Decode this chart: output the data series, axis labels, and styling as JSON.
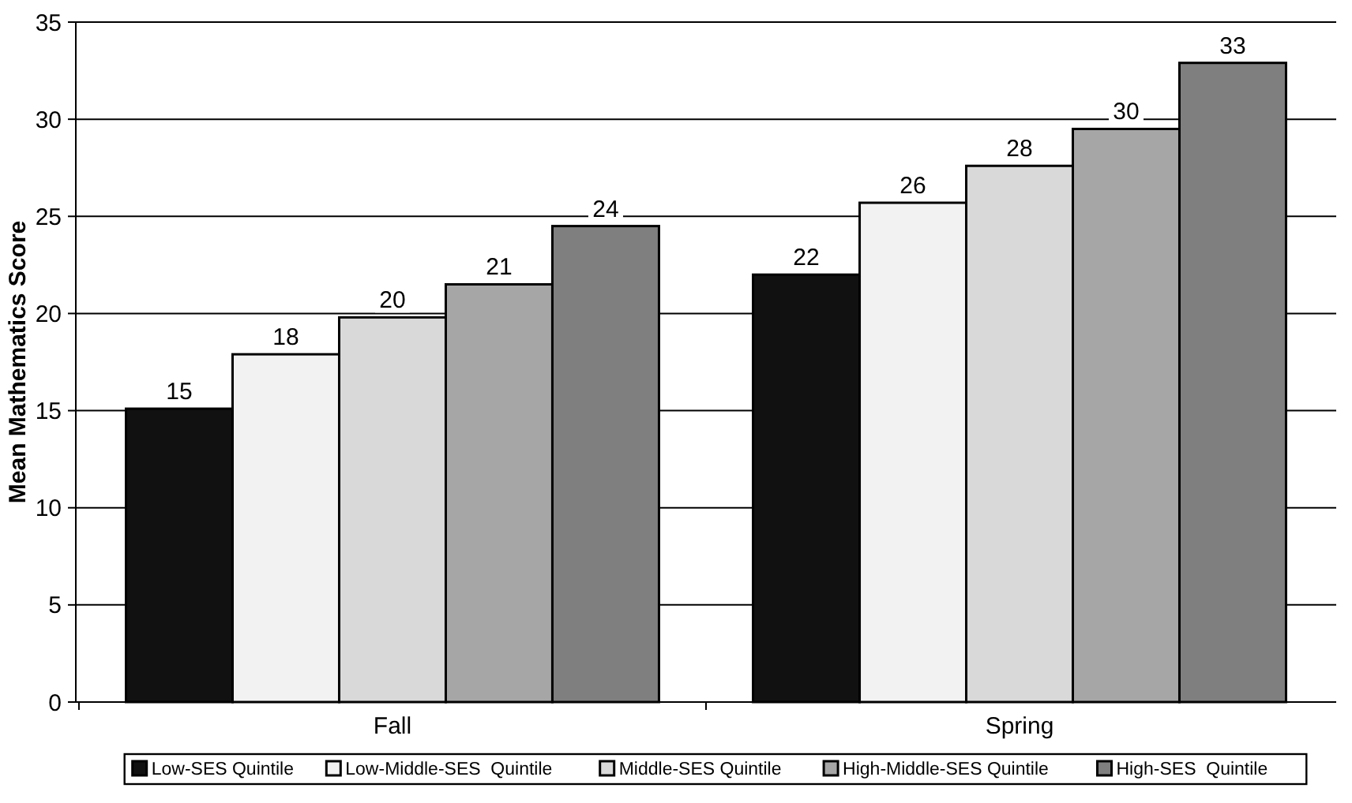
{
  "chart_data": {
    "type": "bar",
    "ylabel": "Mean Mathematics Score",
    "categories": [
      "Fall",
      "Spring"
    ],
    "series": [
      {
        "name": "Low-SES Quintile",
        "color": "#111111",
        "values": [
          15.1,
          22.0
        ],
        "value_labels": [
          "15",
          "22"
        ]
      },
      {
        "name": "Low-Middle-SES  Quintile",
        "color": "#f2f2f2",
        "values": [
          17.9,
          25.7
        ],
        "value_labels": [
          "18",
          "26"
        ]
      },
      {
        "name": "Middle-SES Quintile",
        "color": "#d9d9d9",
        "values": [
          19.8,
          27.6
        ],
        "value_labels": [
          "20",
          "28"
        ]
      },
      {
        "name": "High-Middle-SES Quintile",
        "color": "#a6a6a6",
        "values": [
          21.5,
          29.5
        ],
        "value_labels": [
          "21",
          "30"
        ]
      },
      {
        "name": "High-SES  Quintile",
        "color": "#7f7f7f",
        "values": [
          24.5,
          32.9
        ],
        "value_labels": [
          "24",
          "33"
        ]
      }
    ],
    "ylim": [
      0,
      35
    ],
    "yticks": [
      0,
      5,
      10,
      15,
      20,
      25,
      30,
      35
    ],
    "grid": "y",
    "legend": "bottom"
  }
}
